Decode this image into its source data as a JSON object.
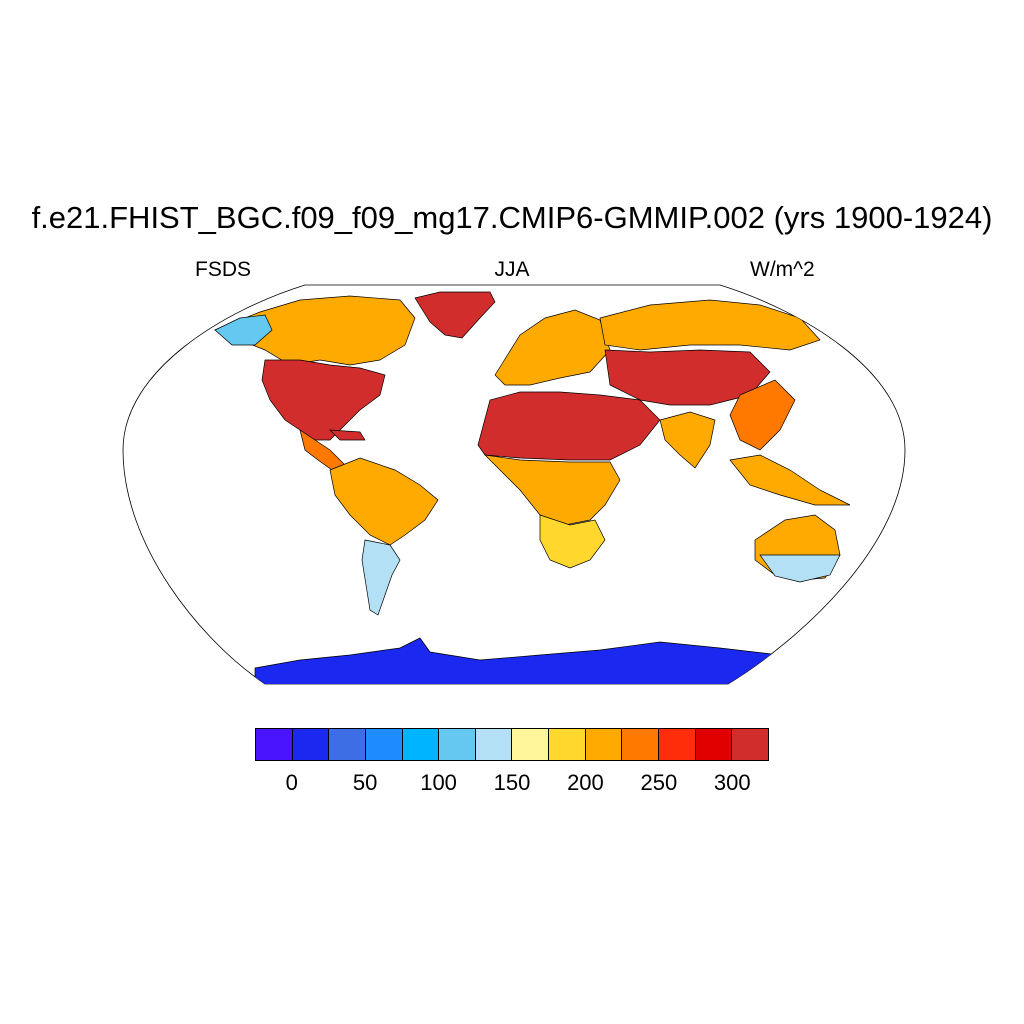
{
  "title": "f.e21.FHIST_BGC.f09_f09_mg17.CMIP6-GMMIP.002 (yrs 1900-1924)",
  "left_label": "FSDS",
  "center_label": "JJA",
  "right_label": "W/m^2",
  "colorbar": {
    "colors": [
      "#4a14ff",
      "#1a28f0",
      "#3d6ee6",
      "#1e8cff",
      "#00b4ff",
      "#64c8f0",
      "#b4e0f5",
      "#fff59b",
      "#ffd72d",
      "#ffaa00",
      "#ff7800",
      "#ff2d0a",
      "#e10000",
      "#d22d2d"
    ],
    "tick_labels": [
      "0",
      "50",
      "100",
      "150",
      "200",
      "250",
      "300"
    ]
  },
  "map": {
    "projection": "Robinson",
    "land_fill_note": "FSDS shading by region",
    "regions": [
      {
        "name": "Antarctica",
        "value": 25
      },
      {
        "name": "Greenland",
        "value": 320
      },
      {
        "name": "Sahara-Arabia",
        "value": 320
      },
      {
        "name": "Central Asia",
        "value": 310
      },
      {
        "name": "Siberia",
        "value": 220
      },
      {
        "name": "North America",
        "value": 300
      },
      {
        "name": "Canada",
        "value": 220
      },
      {
        "name": "Amazon",
        "value": 230
      },
      {
        "name": "Southern South America",
        "value": 120
      },
      {
        "name": "Central Africa",
        "value": 210
      },
      {
        "name": "Southern Africa",
        "value": 170
      },
      {
        "name": "Australia",
        "value": 160
      },
      {
        "name": "India",
        "value": 220
      },
      {
        "name": "Southeast Asia",
        "value": 230
      }
    ]
  }
}
